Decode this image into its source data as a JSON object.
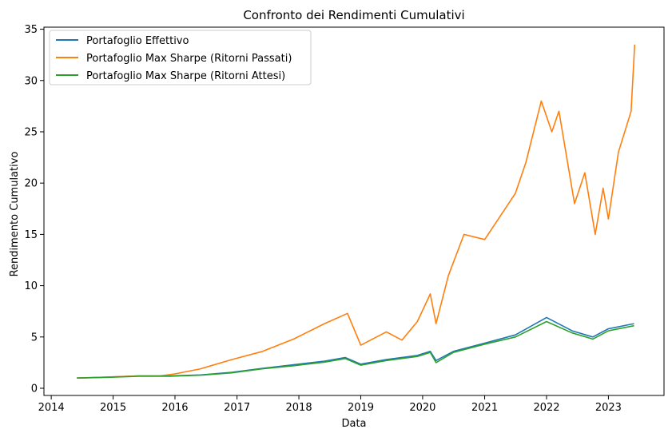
{
  "chart_data": {
    "type": "line",
    "title": "Confronto dei Rendimenti Cumulativi",
    "xlabel": "Data",
    "ylabel": "Rendimento Cumulativo",
    "x_ticks": [
      "2014",
      "2015",
      "2016",
      "2017",
      "2018",
      "2019",
      "2020",
      "2021",
      "2022",
      "2023"
    ],
    "y_ticks": [
      "0",
      "5",
      "10",
      "15",
      "20",
      "25",
      "30",
      "35"
    ],
    "xlim": [
      "2013-11-19",
      "2023-11-25"
    ],
    "ylim": [
      -0.7,
      35.2
    ],
    "grid": false,
    "legend_position": "top-left",
    "series": [
      {
        "name": "Portafoglio Effettivo",
        "color": "#1f77b4",
        "points": [
          [
            "2014-06-01",
            1.0
          ],
          [
            "2014-12-01",
            1.08
          ],
          [
            "2015-06-01",
            1.2
          ],
          [
            "2015-12-01",
            1.2
          ],
          [
            "2016-06-01",
            1.3
          ],
          [
            "2016-12-01",
            1.55
          ],
          [
            "2017-06-01",
            1.95
          ],
          [
            "2017-12-01",
            2.3
          ],
          [
            "2018-06-01",
            2.65
          ],
          [
            "2018-10-01",
            3.0
          ],
          [
            "2019-01-01",
            2.35
          ],
          [
            "2019-06-01",
            2.8
          ],
          [
            "2019-12-01",
            3.2
          ],
          [
            "2020-02-15",
            3.6
          ],
          [
            "2020-03-20",
            2.7
          ],
          [
            "2020-07-01",
            3.6
          ],
          [
            "2021-01-01",
            4.4
          ],
          [
            "2021-07-01",
            5.2
          ],
          [
            "2022-01-01",
            6.9
          ],
          [
            "2022-06-01",
            5.6
          ],
          [
            "2022-10-01",
            5.0
          ],
          [
            "2023-01-01",
            5.8
          ],
          [
            "2023-06-01",
            6.3
          ]
        ]
      },
      {
        "name": "Portafoglio Max Sharpe (Ritorni Passati)",
        "color": "#ff7f0e",
        "points": [
          [
            "2014-06-01",
            1.0
          ],
          [
            "2014-12-01",
            1.1
          ],
          [
            "2015-06-01",
            1.2
          ],
          [
            "2015-10-01",
            1.2
          ],
          [
            "2016-01-01",
            1.4
          ],
          [
            "2016-06-01",
            1.9
          ],
          [
            "2016-12-01",
            2.8
          ],
          [
            "2017-06-01",
            3.6
          ],
          [
            "2017-12-01",
            4.8
          ],
          [
            "2018-06-01",
            6.3
          ],
          [
            "2018-10-15",
            7.3
          ],
          [
            "2019-01-01",
            4.2
          ],
          [
            "2019-06-01",
            5.5
          ],
          [
            "2019-09-01",
            4.7
          ],
          [
            "2019-12-01",
            6.5
          ],
          [
            "2020-02-15",
            9.2
          ],
          [
            "2020-03-20",
            6.3
          ],
          [
            "2020-06-01",
            11.0
          ],
          [
            "2020-09-01",
            15.0
          ],
          [
            "2021-01-01",
            14.5
          ],
          [
            "2021-07-01",
            19.0
          ],
          [
            "2021-09-01",
            22.0
          ],
          [
            "2021-12-01",
            28.0
          ],
          [
            "2022-02-01",
            25.0
          ],
          [
            "2022-03-15",
            27.0
          ],
          [
            "2022-06-15",
            18.0
          ],
          [
            "2022-08-15",
            21.0
          ],
          [
            "2022-10-15",
            15.0
          ],
          [
            "2022-12-01",
            19.5
          ],
          [
            "2023-01-01",
            16.5
          ],
          [
            "2023-03-01",
            23.0
          ],
          [
            "2023-05-15",
            27.0
          ],
          [
            "2023-06-05",
            33.5
          ]
        ]
      },
      {
        "name": "Portafoglio Max Sharpe (Ritorni Attesi)",
        "color": "#2ca02c",
        "points": [
          [
            "2014-06-01",
            1.0
          ],
          [
            "2014-12-01",
            1.07
          ],
          [
            "2015-06-01",
            1.18
          ],
          [
            "2015-12-01",
            1.18
          ],
          [
            "2016-06-01",
            1.28
          ],
          [
            "2016-12-01",
            1.5
          ],
          [
            "2017-06-01",
            1.9
          ],
          [
            "2017-12-01",
            2.2
          ],
          [
            "2018-06-01",
            2.55
          ],
          [
            "2018-10-01",
            2.9
          ],
          [
            "2019-01-01",
            2.25
          ],
          [
            "2019-06-01",
            2.7
          ],
          [
            "2019-12-01",
            3.1
          ],
          [
            "2020-02-15",
            3.5
          ],
          [
            "2020-03-20",
            2.5
          ],
          [
            "2020-07-01",
            3.5
          ],
          [
            "2021-01-01",
            4.3
          ],
          [
            "2021-07-01",
            5.0
          ],
          [
            "2022-01-01",
            6.5
          ],
          [
            "2022-06-01",
            5.4
          ],
          [
            "2022-10-01",
            4.8
          ],
          [
            "2023-01-01",
            5.6
          ],
          [
            "2023-06-01",
            6.1
          ]
        ]
      }
    ]
  }
}
